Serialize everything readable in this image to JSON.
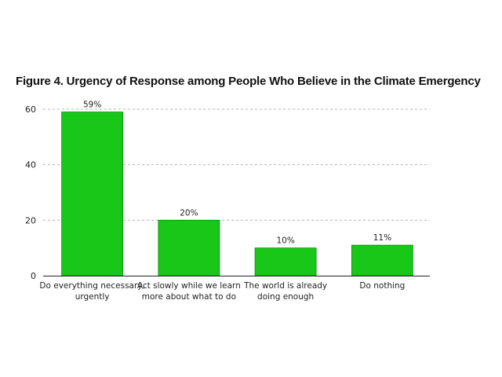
{
  "chart_data": {
    "type": "bar",
    "title": "Figure 4. Urgency of Response among People Who Believe in the Climate Emergency",
    "categories": [
      [
        "Do everything necessary,",
        "urgently"
      ],
      [
        "Act slowly while we learn",
        "more about what to do"
      ],
      [
        "The world is already",
        "doing enough"
      ],
      [
        "Do nothing"
      ]
    ],
    "values": [
      59,
      20,
      10,
      11
    ],
    "data_labels": [
      "59%",
      "20%",
      "10%",
      "11%"
    ],
    "y_ticks": [
      0,
      20,
      40,
      60
    ],
    "ylim": [
      0,
      60
    ],
    "xlabel": "",
    "ylabel": "",
    "grid": "horizontal-dashed",
    "bar_color": "#18c718",
    "bar_border_color": "#0b8f0b"
  }
}
